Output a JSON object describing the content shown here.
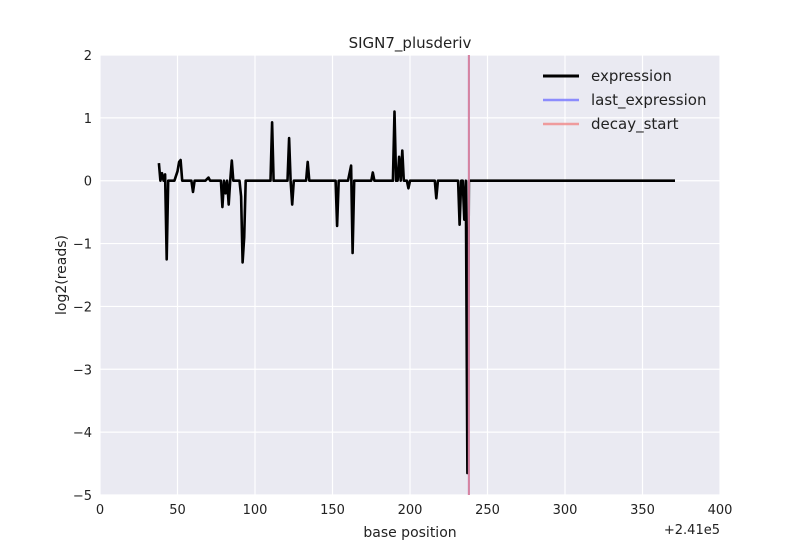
{
  "chart_data": {
    "type": "line",
    "title": "SIGN7_plusderiv",
    "xlabel": "base position",
    "ylabel": "log2(reads)",
    "xlim": [
      0,
      400
    ],
    "ylim": [
      -5,
      2
    ],
    "x_ticks": [
      0,
      50,
      100,
      150,
      200,
      250,
      300,
      350,
      400
    ],
    "y_ticks": [
      2,
      1,
      0,
      -1,
      -2,
      -3,
      -4,
      -5
    ],
    "x_tick_labels": [
      "0",
      "50",
      "100",
      "150",
      "200",
      "250",
      "300",
      "350",
      "400"
    ],
    "y_tick_labels": [
      "2",
      "1",
      "0",
      "−1",
      "−2",
      "−3",
      "−4",
      "−5"
    ],
    "x_offset_label": "+2.41e5",
    "grid": true,
    "legend_position": "top-right",
    "colors": {
      "background": "#eaeaf2",
      "grid": "#ffffff",
      "expression": "#000000",
      "last_expression": "#7b7bff",
      "decay_start": "#f08080"
    },
    "series": [
      {
        "name": "expression",
        "color": "#000000",
        "x": [
          38,
          39,
          40,
          41,
          42,
          43,
          44,
          45,
          46,
          48,
          50,
          51,
          52,
          53,
          55,
          57,
          59,
          60,
          61,
          62,
          65,
          68,
          70,
          71,
          72,
          74,
          77,
          78,
          79,
          80,
          81,
          82,
          83,
          84,
          85,
          86,
          87,
          89,
          90,
          91,
          92,
          93,
          94,
          95,
          98,
          100,
          103,
          106,
          108,
          110,
          111,
          112,
          113,
          115,
          118,
          120,
          121,
          122,
          123,
          124,
          125,
          126,
          127,
          130,
          133,
          134,
          135,
          136,
          137,
          138,
          142,
          146,
          150,
          152,
          153,
          154,
          156,
          160,
          162,
          163,
          164,
          166,
          170,
          173,
          175,
          176,
          177,
          178,
          182,
          186,
          188,
          189,
          190,
          191,
          192,
          193,
          194,
          195,
          196,
          197,
          198,
          199,
          200,
          202,
          203,
          204,
          206,
          210,
          214,
          216,
          217,
          218,
          220,
          224,
          228,
          231,
          232,
          233,
          234,
          235,
          236,
          237,
          238,
          239,
          240,
          245,
          260,
          280,
          300,
          320,
          340,
          360,
          371
        ],
        "y": [
          0.28,
          0.0,
          0.12,
          0.0,
          0.1,
          -1.25,
          0.0,
          0.0,
          0.0,
          0.0,
          0.15,
          0.3,
          0.33,
          0.0,
          0.0,
          0.0,
          0.0,
          -0.18,
          0.0,
          0.0,
          0.0,
          0.0,
          0.05,
          0.0,
          0.0,
          0.0,
          0.0,
          0.0,
          -0.42,
          0.0,
          -0.2,
          0.0,
          -0.38,
          0.0,
          0.32,
          0.0,
          0.0,
          0.0,
          0.0,
          -0.25,
          -1.3,
          -0.9,
          0.0,
          0.0,
          0.0,
          0.0,
          0.0,
          0.0,
          0.0,
          0.0,
          0.93,
          0.0,
          0.0,
          0.0,
          0.0,
          0.0,
          0.0,
          0.68,
          0.0,
          -0.38,
          0.0,
          0.0,
          0.0,
          0.0,
          0.0,
          0.3,
          0.0,
          0.0,
          0.0,
          0.0,
          0.0,
          0.0,
          0.0,
          0.0,
          -0.72,
          0.0,
          0.0,
          0.0,
          0.24,
          -1.15,
          0.0,
          0.0,
          0.0,
          0.0,
          0.0,
          0.13,
          0.0,
          0.0,
          0.0,
          0.0,
          0.0,
          0.0,
          1.1,
          0.0,
          0.0,
          0.38,
          0.0,
          0.48,
          0.0,
          0.0,
          0.0,
          -0.12,
          0.0,
          0.0,
          0.0,
          0.0,
          0.0,
          0.0,
          0.0,
          0.0,
          -0.28,
          0.0,
          0.0,
          0.0,
          0.0,
          0.0,
          -0.7,
          0.0,
          0.0,
          -0.62,
          0.0,
          -4.65,
          0.0,
          0.0,
          0.0,
          0.0,
          0.0,
          0.0,
          0.0,
          0.0,
          0.0,
          0.0,
          0.0
        ]
      },
      {
        "name": "last_expression",
        "color": "#7b7bff",
        "x": [
          238,
          238
        ],
        "y": [
          -5,
          2
        ]
      },
      {
        "name": "decay_start",
        "color": "#f08080",
        "x": [
          238,
          238
        ],
        "y": [
          -5,
          2
        ]
      }
    ]
  }
}
